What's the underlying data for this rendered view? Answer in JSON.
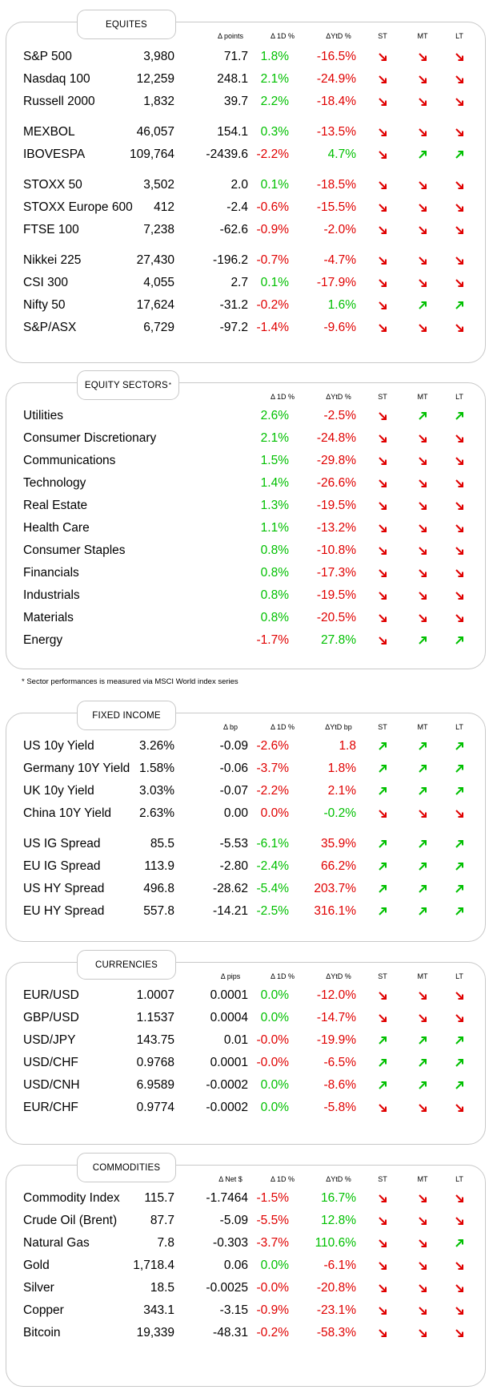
{
  "colors": {
    "up": "#00c000",
    "down": "#e00000",
    "border": "#c8c8c8"
  },
  "equities": {
    "title": "EQUITES",
    "headers": {
      "points": "Δ points",
      "d1": "Δ 1D %",
      "ytd": "ΔYtD %",
      "st": "ST",
      "mt": "MT",
      "lt": "LT"
    },
    "groups": [
      [
        {
          "name": "S&P 500",
          "value": "3,980",
          "chg": "71.7",
          "d1": "1.8%",
          "d1c": "g",
          "ytd": "-16.5%",
          "ytdc": "r",
          "st": "down",
          "mt": "down",
          "lt": "down"
        },
        {
          "name": "Nasdaq 100",
          "value": "12,259",
          "chg": "248.1",
          "d1": "2.1%",
          "d1c": "g",
          "ytd": "-24.9%",
          "ytdc": "r",
          "st": "down",
          "mt": "down",
          "lt": "down"
        },
        {
          "name": "Russell 2000",
          "value": "1,832",
          "chg": "39.7",
          "d1": "2.2%",
          "d1c": "g",
          "ytd": "-18.4%",
          "ytdc": "r",
          "st": "down",
          "mt": "down",
          "lt": "down"
        }
      ],
      [
        {
          "name": "MEXBOL",
          "value": "46,057",
          "chg": "154.1",
          "d1": "0.3%",
          "d1c": "g",
          "ytd": "-13.5%",
          "ytdc": "r",
          "st": "down",
          "mt": "down",
          "lt": "down"
        },
        {
          "name": "IBOVESPA",
          "value": "109,764",
          "chg": "-2439.6",
          "d1": "-2.2%",
          "d1c": "r",
          "ytd": "4.7%",
          "ytdc": "g",
          "st": "down",
          "mt": "up",
          "lt": "up"
        }
      ],
      [
        {
          "name": "STOXX 50",
          "value": "3,502",
          "chg": "2.0",
          "d1": "0.1%",
          "d1c": "g",
          "ytd": "-18.5%",
          "ytdc": "r",
          "st": "down",
          "mt": "down",
          "lt": "down"
        },
        {
          "name": "STOXX Europe 600",
          "value": "412",
          "chg": "-2.4",
          "d1": "-0.6%",
          "d1c": "r",
          "ytd": "-15.5%",
          "ytdc": "r",
          "st": "down",
          "mt": "down",
          "lt": "down"
        },
        {
          "name": "FTSE 100",
          "value": "7,238",
          "chg": "-62.6",
          "d1": "-0.9%",
          "d1c": "r",
          "ytd": "-2.0%",
          "ytdc": "r",
          "st": "down",
          "mt": "down",
          "lt": "down"
        }
      ],
      [
        {
          "name": "Nikkei 225",
          "value": "27,430",
          "chg": "-196.2",
          "d1": "-0.7%",
          "d1c": "r",
          "ytd": "-4.7%",
          "ytdc": "r",
          "st": "down",
          "mt": "down",
          "lt": "down"
        },
        {
          "name": "CSI 300",
          "value": "4,055",
          "chg": "2.7",
          "d1": "0.1%",
          "d1c": "g",
          "ytd": "-17.9%",
          "ytdc": "r",
          "st": "down",
          "mt": "down",
          "lt": "down"
        },
        {
          "name": "Nifty  50",
          "value": "17,624",
          "chg": "-31.2",
          "d1": "-0.2%",
          "d1c": "r",
          "ytd": "1.6%",
          "ytdc": "g",
          "st": "down",
          "mt": "up",
          "lt": "up"
        },
        {
          "name": "S&P/ASX",
          "value": "6,729",
          "chg": "-97.2",
          "d1": "-1.4%",
          "d1c": "r",
          "ytd": "-9.6%",
          "ytdc": "r",
          "st": "down",
          "mt": "down",
          "lt": "down"
        }
      ]
    ]
  },
  "sectors": {
    "title": "EQUITY SECTORS",
    "title_mark": "*",
    "headers": {
      "d1": "Δ 1D %",
      "ytd": "ΔYtD %",
      "st": "ST",
      "mt": "MT",
      "lt": "LT"
    },
    "rows": [
      {
        "name": "Utilities",
        "d1": "2.6%",
        "d1c": "g",
        "ytd": "-2.5%",
        "ytdc": "r",
        "st": "down",
        "mt": "up",
        "lt": "up"
      },
      {
        "name": "Consumer Discretionary",
        "d1": "2.1%",
        "d1c": "g",
        "ytd": "-24.8%",
        "ytdc": "r",
        "st": "down",
        "mt": "down",
        "lt": "down"
      },
      {
        "name": "Communications",
        "d1": "1.5%",
        "d1c": "g",
        "ytd": "-29.8%",
        "ytdc": "r",
        "st": "down",
        "mt": "down",
        "lt": "down"
      },
      {
        "name": "Technology",
        "d1": "1.4%",
        "d1c": "g",
        "ytd": "-26.6%",
        "ytdc": "r",
        "st": "down",
        "mt": "down",
        "lt": "down"
      },
      {
        "name": "Real Estate",
        "d1": "1.3%",
        "d1c": "g",
        "ytd": "-19.5%",
        "ytdc": "r",
        "st": "down",
        "mt": "down",
        "lt": "down"
      },
      {
        "name": "Health Care",
        "d1": "1.1%",
        "d1c": "g",
        "ytd": "-13.2%",
        "ytdc": "r",
        "st": "down",
        "mt": "down",
        "lt": "down"
      },
      {
        "name": "Consumer Staples",
        "d1": "0.8%",
        "d1c": "g",
        "ytd": "-10.8%",
        "ytdc": "r",
        "st": "down",
        "mt": "down",
        "lt": "down"
      },
      {
        "name": "Financials",
        "d1": "0.8%",
        "d1c": "g",
        "ytd": "-17.3%",
        "ytdc": "r",
        "st": "down",
        "mt": "down",
        "lt": "down"
      },
      {
        "name": "Industrials",
        "d1": "0.8%",
        "d1c": "g",
        "ytd": "-19.5%",
        "ytdc": "r",
        "st": "down",
        "mt": "down",
        "lt": "down"
      },
      {
        "name": "Materials",
        "d1": "0.8%",
        "d1c": "g",
        "ytd": "-20.5%",
        "ytdc": "r",
        "st": "down",
        "mt": "down",
        "lt": "down"
      },
      {
        "name": "Energy",
        "d1": "-1.7%",
        "d1c": "r",
        "ytd": "27.8%",
        "ytdc": "g",
        "st": "down",
        "mt": "up",
        "lt": "up"
      }
    ],
    "footnote": "* Sector performances is measured via MSCI World index series"
  },
  "fixed_income": {
    "title": "FIXED INCOME",
    "headers": {
      "points": "Δ bp",
      "d1": "Δ 1D %",
      "ytd": "ΔYtD bp",
      "st": "ST",
      "mt": "MT",
      "lt": "LT"
    },
    "groups": [
      [
        {
          "name": "US 10y Yield",
          "value": "3.26%",
          "chg": "-0.09",
          "d1": "-2.6%",
          "d1c": "r",
          "ytd": "1.8",
          "ytdc": "r",
          "st": "up",
          "mt": "up",
          "lt": "up"
        },
        {
          "name": "Germany 10Y Yield",
          "value": "1.58%",
          "chg": "-0.06",
          "d1": "-3.7%",
          "d1c": "r",
          "ytd": "1.8%",
          "ytdc": "r",
          "st": "up",
          "mt": "up",
          "lt": "up"
        },
        {
          "name": "UK 10y Yield",
          "value": "3.03%",
          "chg": "-0.07",
          "d1": "-2.2%",
          "d1c": "r",
          "ytd": "2.1%",
          "ytdc": "r",
          "st": "up",
          "mt": "up",
          "lt": "up"
        },
        {
          "name": "China 10Y Yield",
          "value": "2.63%",
          "chg": "0.00",
          "d1": "0.0%",
          "d1c": "r",
          "ytd": "-0.2%",
          "ytdc": "g",
          "st": "down",
          "mt": "down",
          "lt": "down"
        }
      ],
      [
        {
          "name": "US IG Spread",
          "value": "85.5",
          "chg": "-5.53",
          "d1": "-6.1%",
          "d1c": "g",
          "ytd": "35.9%",
          "ytdc": "r",
          "st": "up",
          "mt": "up",
          "lt": "up"
        },
        {
          "name": "EU IG Spread",
          "value": "113.9",
          "chg": "-2.80",
          "d1": "-2.4%",
          "d1c": "g",
          "ytd": "66.2%",
          "ytdc": "r",
          "st": "up",
          "mt": "up",
          "lt": "up"
        },
        {
          "name": "US HY Spread",
          "value": "496.8",
          "chg": "-28.62",
          "d1": "-5.4%",
          "d1c": "g",
          "ytd": "203.7%",
          "ytdc": "r",
          "st": "up",
          "mt": "up",
          "lt": "up"
        },
        {
          "name": "EU HY Spread",
          "value": "557.8",
          "chg": "-14.21",
          "d1": "-2.5%",
          "d1c": "g",
          "ytd": "316.1%",
          "ytdc": "r",
          "st": "up",
          "mt": "up",
          "lt": "up"
        }
      ]
    ]
  },
  "currencies": {
    "title": "CURRENCIES",
    "headers": {
      "points": "Δ pips",
      "d1": "Δ 1D %",
      "ytd": "ΔYtD %",
      "st": "ST",
      "mt": "MT",
      "lt": "LT"
    },
    "groups": [
      [
        {
          "name": "EUR/USD",
          "value": "1.0007",
          "chg": "0.0001",
          "d1": "0.0%",
          "d1c": "g",
          "ytd": "-12.0%",
          "ytdc": "r",
          "st": "down",
          "mt": "down",
          "lt": "down"
        },
        {
          "name": "GBP/USD",
          "value": "1.1537",
          "chg": "0.0004",
          "d1": "0.0%",
          "d1c": "g",
          "ytd": "-14.7%",
          "ytdc": "r",
          "st": "down",
          "mt": "down",
          "lt": "down"
        },
        {
          "name": "USD/JPY",
          "value": "143.75",
          "chg": "0.01",
          "d1": "-0.0%",
          "d1c": "r",
          "ytd": "-19.9%",
          "ytdc": "r",
          "st": "up",
          "mt": "up",
          "lt": "up"
        },
        {
          "name": "USD/CHF",
          "value": "0.9768",
          "chg": "0.0001",
          "d1": "-0.0%",
          "d1c": "r",
          "ytd": "-6.5%",
          "ytdc": "r",
          "st": "up",
          "mt": "up",
          "lt": "up"
        },
        {
          "name": "USD/CNH",
          "value": "6.9589",
          "chg": "-0.0002",
          "d1": "0.0%",
          "d1c": "g",
          "ytd": "-8.6%",
          "ytdc": "r",
          "st": "up",
          "mt": "up",
          "lt": "up"
        },
        {
          "name": "EUR/CHF",
          "value": "0.9774",
          "chg": "-0.0002",
          "d1": "0.0%",
          "d1c": "g",
          "ytd": "-5.8%",
          "ytdc": "r",
          "st": "down",
          "mt": "down",
          "lt": "down"
        }
      ]
    ]
  },
  "commodities": {
    "title": "COMMODITIES",
    "headers": {
      "points": "Δ Net $",
      "d1": "Δ 1D %",
      "ytd": "ΔYtD %",
      "st": "ST",
      "mt": "MT",
      "lt": "LT"
    },
    "groups": [
      [
        {
          "name": "Commodity Index",
          "value": "115.7",
          "chg": "-1.7464",
          "d1": "-1.5%",
          "d1c": "r",
          "ytd": "16.7%",
          "ytdc": "g",
          "st": "down",
          "mt": "down",
          "lt": "down"
        },
        {
          "name": "Crude Oil (Brent)",
          "value": "87.7",
          "chg": "-5.09",
          "d1": "-5.5%",
          "d1c": "r",
          "ytd": "12.8%",
          "ytdc": "g",
          "st": "down",
          "mt": "down",
          "lt": "down"
        },
        {
          "name": "Natural Gas",
          "value": "7.8",
          "chg": "-0.303",
          "d1": "-3.7%",
          "d1c": "r",
          "ytd": "110.6%",
          "ytdc": "g",
          "st": "down",
          "mt": "down",
          "lt": "up"
        },
        {
          "name": "Gold",
          "value": "1,718.4",
          "chg": "0.06",
          "d1": "0.0%",
          "d1c": "g",
          "ytd": "-6.1%",
          "ytdc": "r",
          "st": "down",
          "mt": "down",
          "lt": "down"
        },
        {
          "name": "Silver",
          "value": "18.5",
          "chg": "-0.0025",
          "d1": "-0.0%",
          "d1c": "r",
          "ytd": "-20.8%",
          "ytdc": "r",
          "st": "down",
          "mt": "down",
          "lt": "down"
        },
        {
          "name": "Copper",
          "value": "343.1",
          "chg": "-3.15",
          "d1": "-0.9%",
          "d1c": "r",
          "ytd": "-23.1%",
          "ytdc": "r",
          "st": "down",
          "mt": "down",
          "lt": "down"
        },
        {
          "name": "Bitcoin",
          "value": "19,339",
          "chg": "-48.31",
          "d1": "-0.2%",
          "d1c": "r",
          "ytd": "-58.3%",
          "ytdc": "r",
          "st": "down",
          "mt": "down",
          "lt": "down"
        }
      ]
    ]
  }
}
